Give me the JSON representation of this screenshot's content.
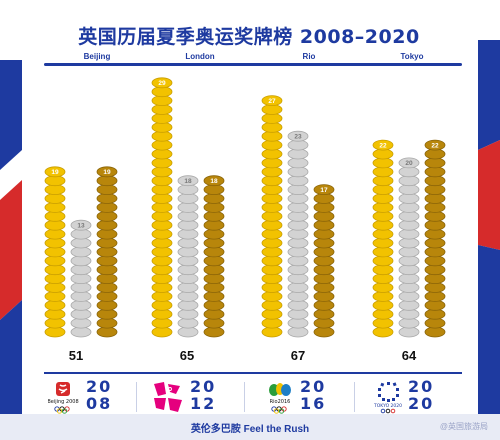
{
  "title": "英国历届夏季奥运奖牌榜 2008–2020",
  "footer": "英伦多巴胺 Feel the Rush",
  "watermark": "@英国旅游局",
  "colors": {
    "gold": "#f2c200",
    "silver": "#d3d3d3",
    "bronze": "#b8860b",
    "blue": "#1e3aa0",
    "red": "#d62b2b"
  },
  "logos": [
    {
      "games": "Beijing",
      "icon": "beijing-2008-emblem-icon"
    },
    {
      "games": "London",
      "icon": "london-2012-emblem-icon"
    },
    {
      "games": "Rio",
      "icon": "rio-2016-emblem-icon"
    },
    {
      "games": "Tokyo",
      "icon": "tokyo-2020-emblem-icon"
    }
  ],
  "chart_data": {
    "type": "bar",
    "categories": [
      "Beijing",
      "London",
      "Rio",
      "Tokyo"
    ],
    "years": [
      "20\n08",
      "20\n12",
      "20\n16",
      "20\n20"
    ],
    "series": [
      {
        "name": "gold",
        "values": [
          19,
          29,
          27,
          22
        ]
      },
      {
        "name": "silver",
        "values": [
          13,
          18,
          23,
          20
        ]
      },
      {
        "name": "bronze",
        "values": [
          19,
          18,
          17,
          22
        ]
      }
    ],
    "totals": [
      51,
      65,
      67,
      64
    ]
  }
}
